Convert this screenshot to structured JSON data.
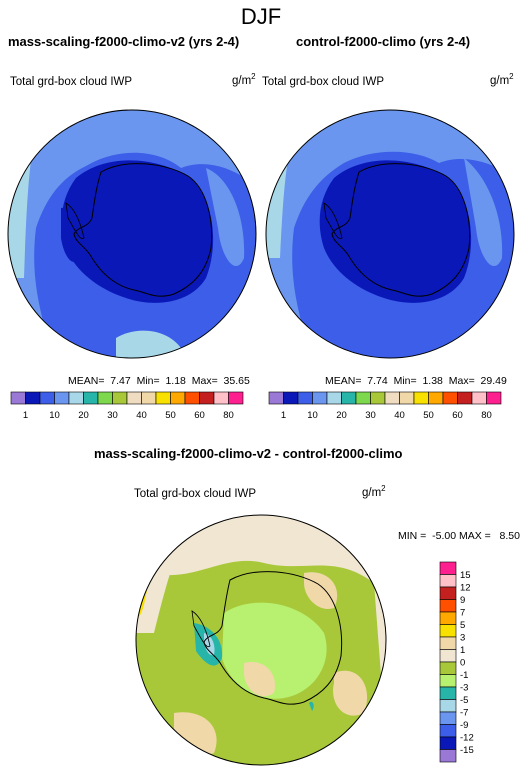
{
  "title": "DJF",
  "top_left": {
    "title": "mass-scaling-f2000-climo-v2 (yrs 2-4)",
    "variable": "Total grd-box cloud IWP",
    "units": "g/m",
    "units_exp": "2",
    "stats": "MEAN=  7.47  Min=  1.18  Max=  35.65"
  },
  "top_right": {
    "title": "control-f2000-climo (yrs 2-4)",
    "variable": "Total grd-box cloud IWP",
    "units": "g/m",
    "units_exp": "2",
    "stats": "MEAN=  7.74  Min=  1.38  Max=  29.49"
  },
  "top_colorbar": {
    "labels": [
      "1",
      "10",
      "20",
      "30",
      "40",
      "50",
      "60",
      "80"
    ],
    "colors": [
      "#9a79d6",
      "#0a18b8",
      "#3c5ee8",
      "#6a96f0",
      "#a8d8e8",
      "#26b5a8",
      "#7ed84e",
      "#a8c83a",
      "#f0dcc0",
      "#f0d8a8",
      "#f8e000",
      "#ffa800",
      "#ff5000",
      "#c42020",
      "#ffc0c8",
      "#ff2090"
    ]
  },
  "diff": {
    "title": "mass-scaling-f2000-climo-v2 - control-f2000-climo",
    "variable": "Total grd-box cloud IWP",
    "units": "g/m",
    "units_exp": "2",
    "stats": "MIN =  -5.00 MAX =   8.50"
  },
  "diff_colorbar": {
    "labels": [
      "15",
      "12",
      "9",
      "7",
      "5",
      "3",
      "1",
      "0",
      "-1",
      "-3",
      "-5",
      "-7",
      "-9",
      "-12",
      "-15"
    ],
    "colors": [
      "#ff2090",
      "#ffc0c8",
      "#c42020",
      "#ff5000",
      "#ffa800",
      "#f8e000",
      "#f0d8a8",
      "#f0e6d2",
      "#a8c83a",
      "#b8f070",
      "#26b5a8",
      "#a8d8e8",
      "#6a96f0",
      "#3c5ee8",
      "#0a18b8",
      "#9a79d6"
    ]
  }
}
